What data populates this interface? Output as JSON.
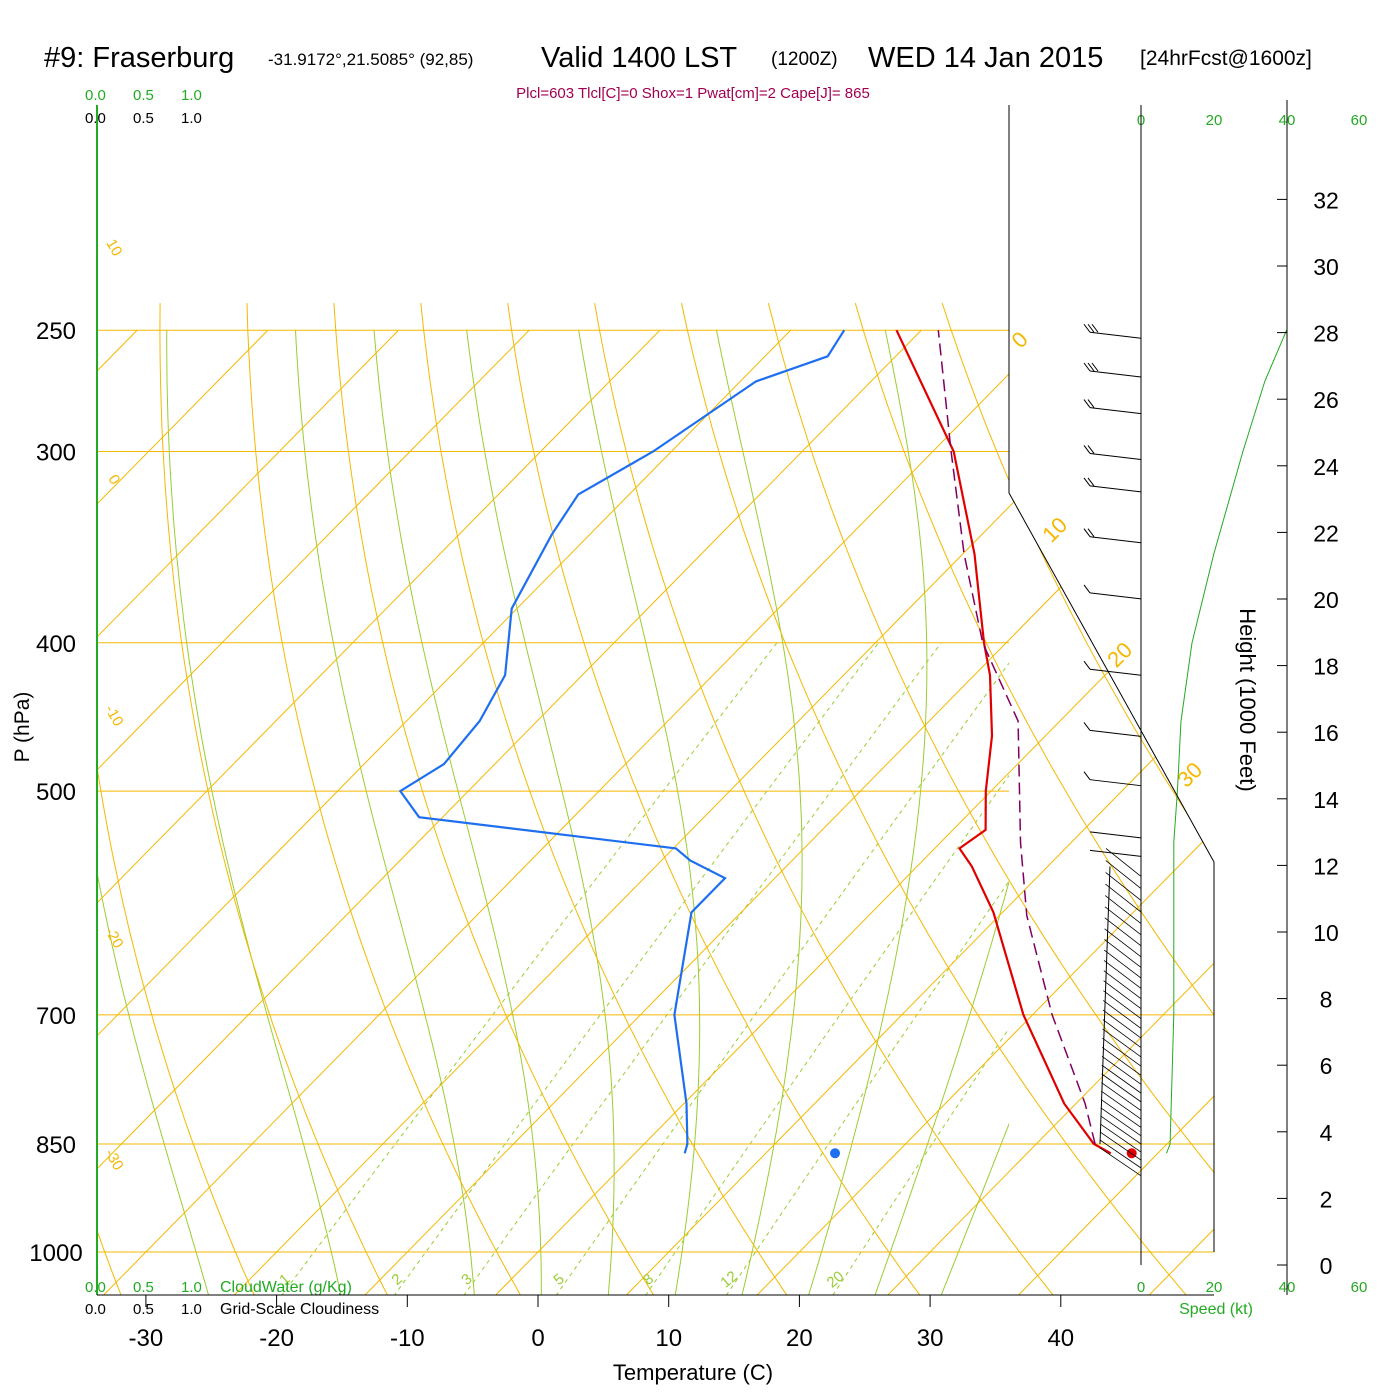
{
  "header": {
    "station": "#9: Fraserburg",
    "location": "-31.9172°,21.5085° (92,85)",
    "valid_prefix": "Valid 1400 LST",
    "zulu": "(1200Z)",
    "date": "WED 14 Jan 2015",
    "forecast": "[24hrFcst@1600z]",
    "indices": "Plcl=603 Tlcl[C]=0 Shox=1 Pwat[cm]=2 Cape[J]= 865"
  },
  "axes": {
    "x_label": "Temperature (C)",
    "y_label": "P (hPa)",
    "height_label": "Height (1000 Feet)",
    "speed_label": "Speed (kt)",
    "cloudwater_label": "CloudWater (g/Kg)",
    "cloudiness_label": "Grid-Scale Cloudiness",
    "cloud_scale": [
      "0.0",
      "0.5",
      "1.0"
    ],
    "speed_ticks": [
      "0",
      "20",
      "40",
      "60"
    ],
    "height_ticks": [
      "0",
      "2",
      "4",
      "6",
      "8",
      "10",
      "12",
      "14",
      "16",
      "18",
      "20",
      "22",
      "24",
      "26",
      "28",
      "30",
      "32"
    ]
  },
  "colors": {
    "isobar": "#f5b800",
    "isotherm": "#f5b800",
    "dry_adiabat": "#f5b800",
    "moist_adiabat": "#9acd32",
    "mixing_ratio": "#9acd32",
    "temperature": "#e00000",
    "dewpoint": "#1e6ff0",
    "parcel": "#800060",
    "speed_profile": "#22aa22",
    "green_text": "#22aa22",
    "indices_text": "#a00050"
  },
  "chart_data": [
    {
      "type": "line",
      "title": "Skew-T log-P sounding",
      "x_axis": {
        "label": "Temperature (C)",
        "ticks": [
          -30,
          -20,
          -10,
          0,
          10,
          20,
          30,
          40
        ]
      },
      "y_axis": {
        "label": "P (hPa)",
        "scale": "log",
        "ticks": [
          250,
          300,
          400,
          500,
          700,
          850,
          1000
        ],
        "range": [
          1100,
          250
        ]
      },
      "isotherm_labels": [
        {
          "t": -10,
          "text": "10"
        },
        {
          "t": 0,
          "text": "0"
        },
        {
          "t": 10,
          "text": "10"
        },
        {
          "t": 20,
          "text": "20"
        },
        {
          "t": 30,
          "text": "30"
        }
      ],
      "left_isotherm_labels": [
        {
          "p": 300,
          "text": "10"
        },
        {
          "p": 390,
          "text": "0"
        },
        {
          "p": 520,
          "text": "-10"
        },
        {
          "p": 640,
          "text": "-20"
        },
        {
          "p": 870,
          "text": "-30"
        }
      ],
      "mixing_ratio_labels": [
        "1",
        "2",
        "3",
        "5",
        "8",
        "12",
        "20"
      ],
      "series": [
        {
          "name": "Temperature",
          "points": [
            [
              862,
              36.4
            ],
            [
              850,
              34.4
            ],
            [
              800,
              29.1
            ],
            [
              700,
              19.3
            ],
            [
              600,
              9.3
            ],
            [
              560,
              4.2
            ],
            [
              545,
              1.9
            ],
            [
              530,
              2.5
            ],
            [
              500,
              -0.4
            ],
            [
              460,
              -4.1
            ],
            [
              420,
              -8.8
            ],
            [
              400,
              -11.7
            ],
            [
              350,
              -19.1
            ],
            [
              300,
              -28.4
            ],
            [
              250,
              -41.9
            ]
          ]
        },
        {
          "name": "Dewpoint",
          "points": [
            [
              862,
              3.8
            ],
            [
              850,
              3.3
            ],
            [
              800,
              0.2
            ],
            [
              700,
              -7.4
            ],
            [
              600,
              -13.8
            ],
            [
              570,
              -13.8
            ],
            [
              555,
              -17.8
            ],
            [
              545,
              -19.8
            ],
            [
              520,
              -41.8
            ],
            [
              500,
              -45.2
            ],
            [
              480,
              -43.9
            ],
            [
              450,
              -44.4
            ],
            [
              420,
              -45.9
            ],
            [
              380,
              -50.4
            ],
            [
              340,
              -52.9
            ],
            [
              320,
              -53.9
            ],
            [
              300,
              -51.4
            ],
            [
              270,
              -48.8
            ],
            [
              260,
              -45.2
            ],
            [
              250,
              -45.9
            ]
          ]
        },
        {
          "name": "Parcel",
          "points": [
            [
              850,
              34.5
            ],
            [
              800,
              30.7
            ],
            [
              700,
              21.5
            ],
            [
              603,
              12.1
            ],
            [
              540,
              6.1
            ],
            [
              450,
              -3.2
            ],
            [
              400,
              -11.8
            ],
            [
              350,
              -19.9
            ],
            [
              300,
              -28.6
            ],
            [
              250,
              -38.7
            ]
          ]
        }
      ],
      "surface_points": [
        {
          "name": "surface temperature",
          "p": 862,
          "t": 38.0
        },
        {
          "name": "surface dewpoint",
          "p": 862,
          "t": 15.3
        }
      ]
    },
    {
      "type": "line",
      "title": "Wind speed profile",
      "x_axis": {
        "label": "Speed (kt)",
        "ticks": [
          0,
          20,
          40,
          60
        ]
      },
      "y_axis": {
        "label": "P (hPa)",
        "scale": "log"
      },
      "series": [
        {
          "name": "Speed",
          "points": [
            [
              862,
              7
            ],
            [
              850,
              8
            ],
            [
              700,
              9
            ],
            [
              560,
              9
            ],
            [
              540,
              9
            ],
            [
              500,
              10
            ],
            [
              450,
              11
            ],
            [
              400,
              14
            ],
            [
              350,
              20
            ],
            [
              300,
              28
            ],
            [
              270,
              34
            ],
            [
              250,
              40
            ]
          ]
        }
      ]
    },
    {
      "type": "line",
      "title": "Wind barbs",
      "series": [
        {
          "name": "upper barbs",
          "points": [
            [
              250,
              30
            ],
            [
              265,
              30
            ],
            [
              280,
              28
            ],
            [
              300,
              25
            ],
            [
              315,
              23
            ],
            [
              340,
              20
            ],
            [
              370,
              18
            ],
            [
              415,
              15
            ],
            [
              455,
              13
            ],
            [
              490,
              10
            ],
            [
              530,
              8
            ],
            [
              545,
              7
            ]
          ]
        }
      ]
    }
  ]
}
